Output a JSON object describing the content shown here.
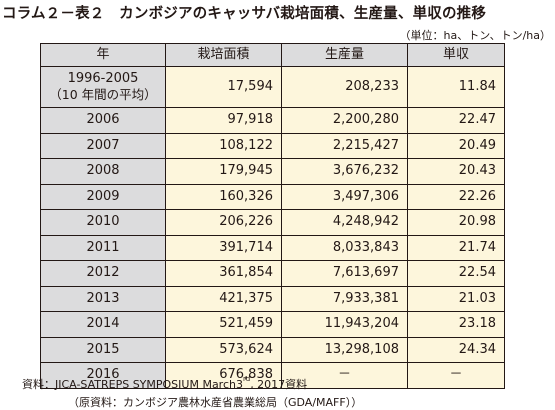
{
  "title": "コラム２－表２　カンボジアのキャッサバ栽培面積、生産量、単収の推移",
  "unit_note": "（単位：ha、トン、トン/ha）",
  "headers": {
    "year": "年",
    "area": "栽培面積",
    "production": "生産量",
    "yield": "単収"
  },
  "first_row": {
    "year_line1": "1996-2005",
    "year_line2": "（10 年間の平均）",
    "area": "17,594",
    "production": "208,233",
    "yield": "11.84"
  },
  "rows": [
    {
      "year": "2006",
      "area": "97,918",
      "production": "2,200,280",
      "yield": "22.47"
    },
    {
      "year": "2007",
      "area": "108,122",
      "production": "2,215,427",
      "yield": "20.49"
    },
    {
      "year": "2008",
      "area": "179,945",
      "production": "3,676,232",
      "yield": "20.43"
    },
    {
      "year": "2009",
      "area": "160,326",
      "production": "3,497,306",
      "yield": "22.26"
    },
    {
      "year": "2010",
      "area": "206,226",
      "production": "4,248,942",
      "yield": "20.98"
    },
    {
      "year": "2011",
      "area": "391,714",
      "production": "8,033,843",
      "yield": "21.74"
    },
    {
      "year": "2012",
      "area": "361,854",
      "production": "7,613,697",
      "yield": "22.54"
    },
    {
      "year": "2013",
      "area": "421,375",
      "production": "7,933,381",
      "yield": "21.03"
    },
    {
      "year": "2014",
      "area": "521,459",
      "production": "11,943,204",
      "yield": "23.18"
    },
    {
      "year": "2015",
      "area": "573,624",
      "production": "13,298,108",
      "yield": "24.34"
    },
    {
      "year": "2016",
      "area": "676,838",
      "production": "－",
      "yield": "－"
    }
  ],
  "source": {
    "prefix": "資料：JICA-SATREPS SYMPOSIUM March3",
    "sup": "rd",
    "suffix": ", 2017資料",
    "original": "（原資料：カンボジア農林水産省農業総局（GDA/MAFF））"
  },
  "colors": {
    "header_bg": "#dcdcdd",
    "cell_bg": "#fdf6dc",
    "text": "#231815"
  }
}
